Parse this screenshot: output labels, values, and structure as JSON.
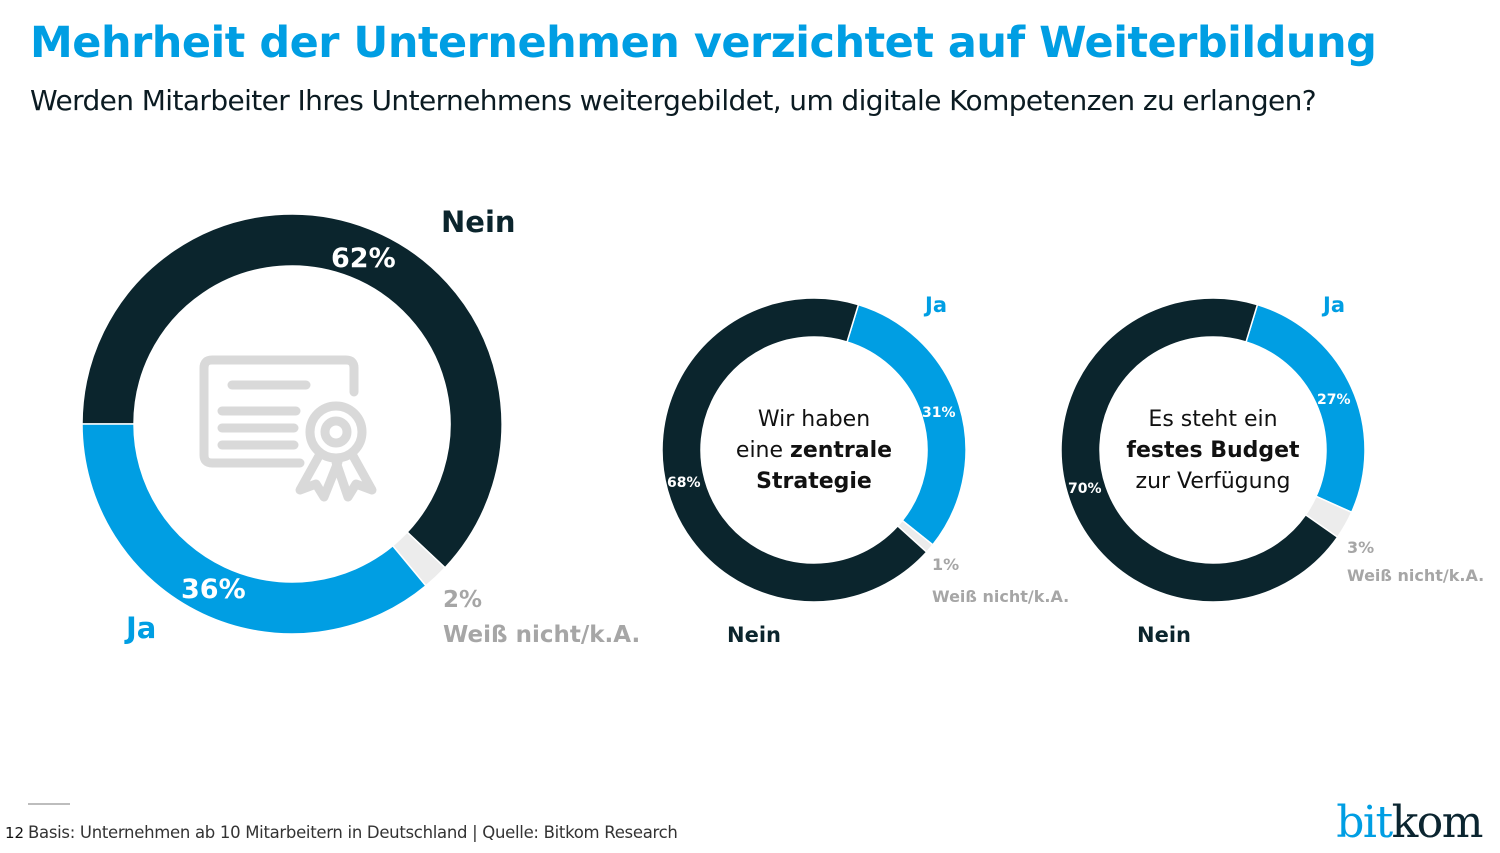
{
  "header": {
    "title": "Mehrheit der Unternehmen verzichtet auf Weiterbildung",
    "subtitle": "Werden Mitarbeiter Ihres Unternehmens weitergebildet, um digitale Kompetenzen zu erlangen?"
  },
  "colors": {
    "ja": "#009ee3",
    "nein": "#0b252d",
    "weiss_nicht": "#ececec",
    "weiss_nicht_text": "#a6a6a6",
    "icon": "#d9d9d9"
  },
  "chart_data": [
    {
      "type": "pie",
      "variant": "donut",
      "title": "Werden Mitarbeiter Ihres Unternehmens weitergebildet, um digitale Kompetenzen zu erlangen?",
      "center_icon": "certificate-icon",
      "center_text": [],
      "slices": [
        {
          "key": "nein",
          "label": "Nein",
          "value": 62,
          "value_label": "62%"
        },
        {
          "key": "weiss_nicht",
          "label": "Weiß nicht/k.A.",
          "value": 2,
          "value_label": "2%"
        },
        {
          "key": "ja",
          "label": "Ja",
          "value": 36,
          "value_label": "36%"
        }
      ],
      "unit": "%"
    },
    {
      "type": "pie",
      "variant": "donut",
      "title": "Wir haben eine zentrale Strategie",
      "center_text": [
        {
          "normal": "Wir haben",
          "bold": ""
        },
        {
          "normal": "eine ",
          "bold": "zentrale"
        },
        {
          "normal": "",
          "bold": "Strategie"
        }
      ],
      "slices": [
        {
          "key": "ja",
          "label": "Ja",
          "value": 31,
          "value_label": "31%"
        },
        {
          "key": "weiss_nicht",
          "label": "Weiß nicht/k.A.",
          "value": 1,
          "value_label": "1%"
        },
        {
          "key": "nein",
          "label": "Nein",
          "value": 68,
          "value_label": "68%"
        }
      ],
      "unit": "%"
    },
    {
      "type": "pie",
      "variant": "donut",
      "title": "Es steht ein festes Budget zur Verfügung",
      "center_text": [
        {
          "normal": "Es steht ein",
          "bold": ""
        },
        {
          "normal": "",
          "bold": "festes Budget"
        },
        {
          "normal": "zur Verfügung",
          "bold": ""
        }
      ],
      "slices": [
        {
          "key": "ja",
          "label": "Ja",
          "value": 27,
          "value_label": "27%"
        },
        {
          "key": "weiss_nicht",
          "label": "Weiß nicht/k.A.",
          "value": 3,
          "value_label": "3%"
        },
        {
          "key": "nein",
          "label": "Nein",
          "value": 70,
          "value_label": "70%"
        }
      ],
      "unit": "%"
    }
  ],
  "footer": {
    "page_number": "12",
    "source": "Basis: Unternehmen ab 10 Mitarbeitern in Deutschland | Quelle: Bitkom Research",
    "logo_part1": "bit",
    "logo_part2": "kom"
  }
}
